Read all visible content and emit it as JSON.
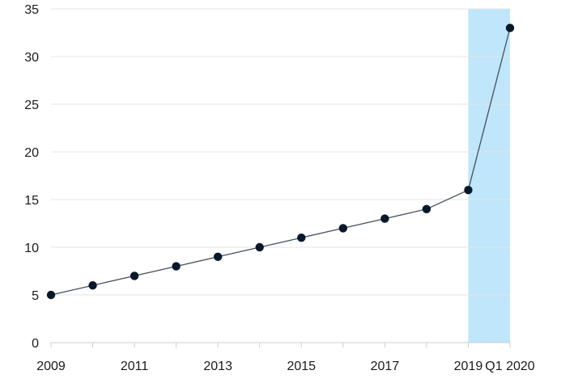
{
  "chart_data": {
    "type": "line",
    "title": "",
    "xlabel": "",
    "ylabel": "",
    "x": [
      "2009",
      "2010",
      "2011",
      "2012",
      "2013",
      "2014",
      "2015",
      "2016",
      "2017",
      "2018",
      "2019",
      "Q1 2020"
    ],
    "series": [
      {
        "values": [
          5,
          6,
          7,
          8,
          9,
          10,
          11,
          12,
          13,
          14,
          16,
          33
        ]
      }
    ],
    "x_tick_labels": [
      "2009",
      "",
      "2011",
      "",
      "2013",
      "",
      "2015",
      "",
      "2017",
      "",
      "2019",
      "Q1 2020"
    ],
    "y_ticks": [
      "0",
      "5",
      "10",
      "15",
      "20",
      "25",
      "30",
      "35"
    ],
    "ylim": [
      0,
      35
    ],
    "grid": "horizontal",
    "legend": "none",
    "highlight_region": {
      "x_start": "2019",
      "x_end": "Q1 2020",
      "color": "#bfe6fa"
    },
    "colors": {
      "line": "#44505c",
      "marker": "#07182a",
      "grid": "#e4e4e4",
      "axis": "#cccccc",
      "text": "#1a1a1a"
    }
  }
}
